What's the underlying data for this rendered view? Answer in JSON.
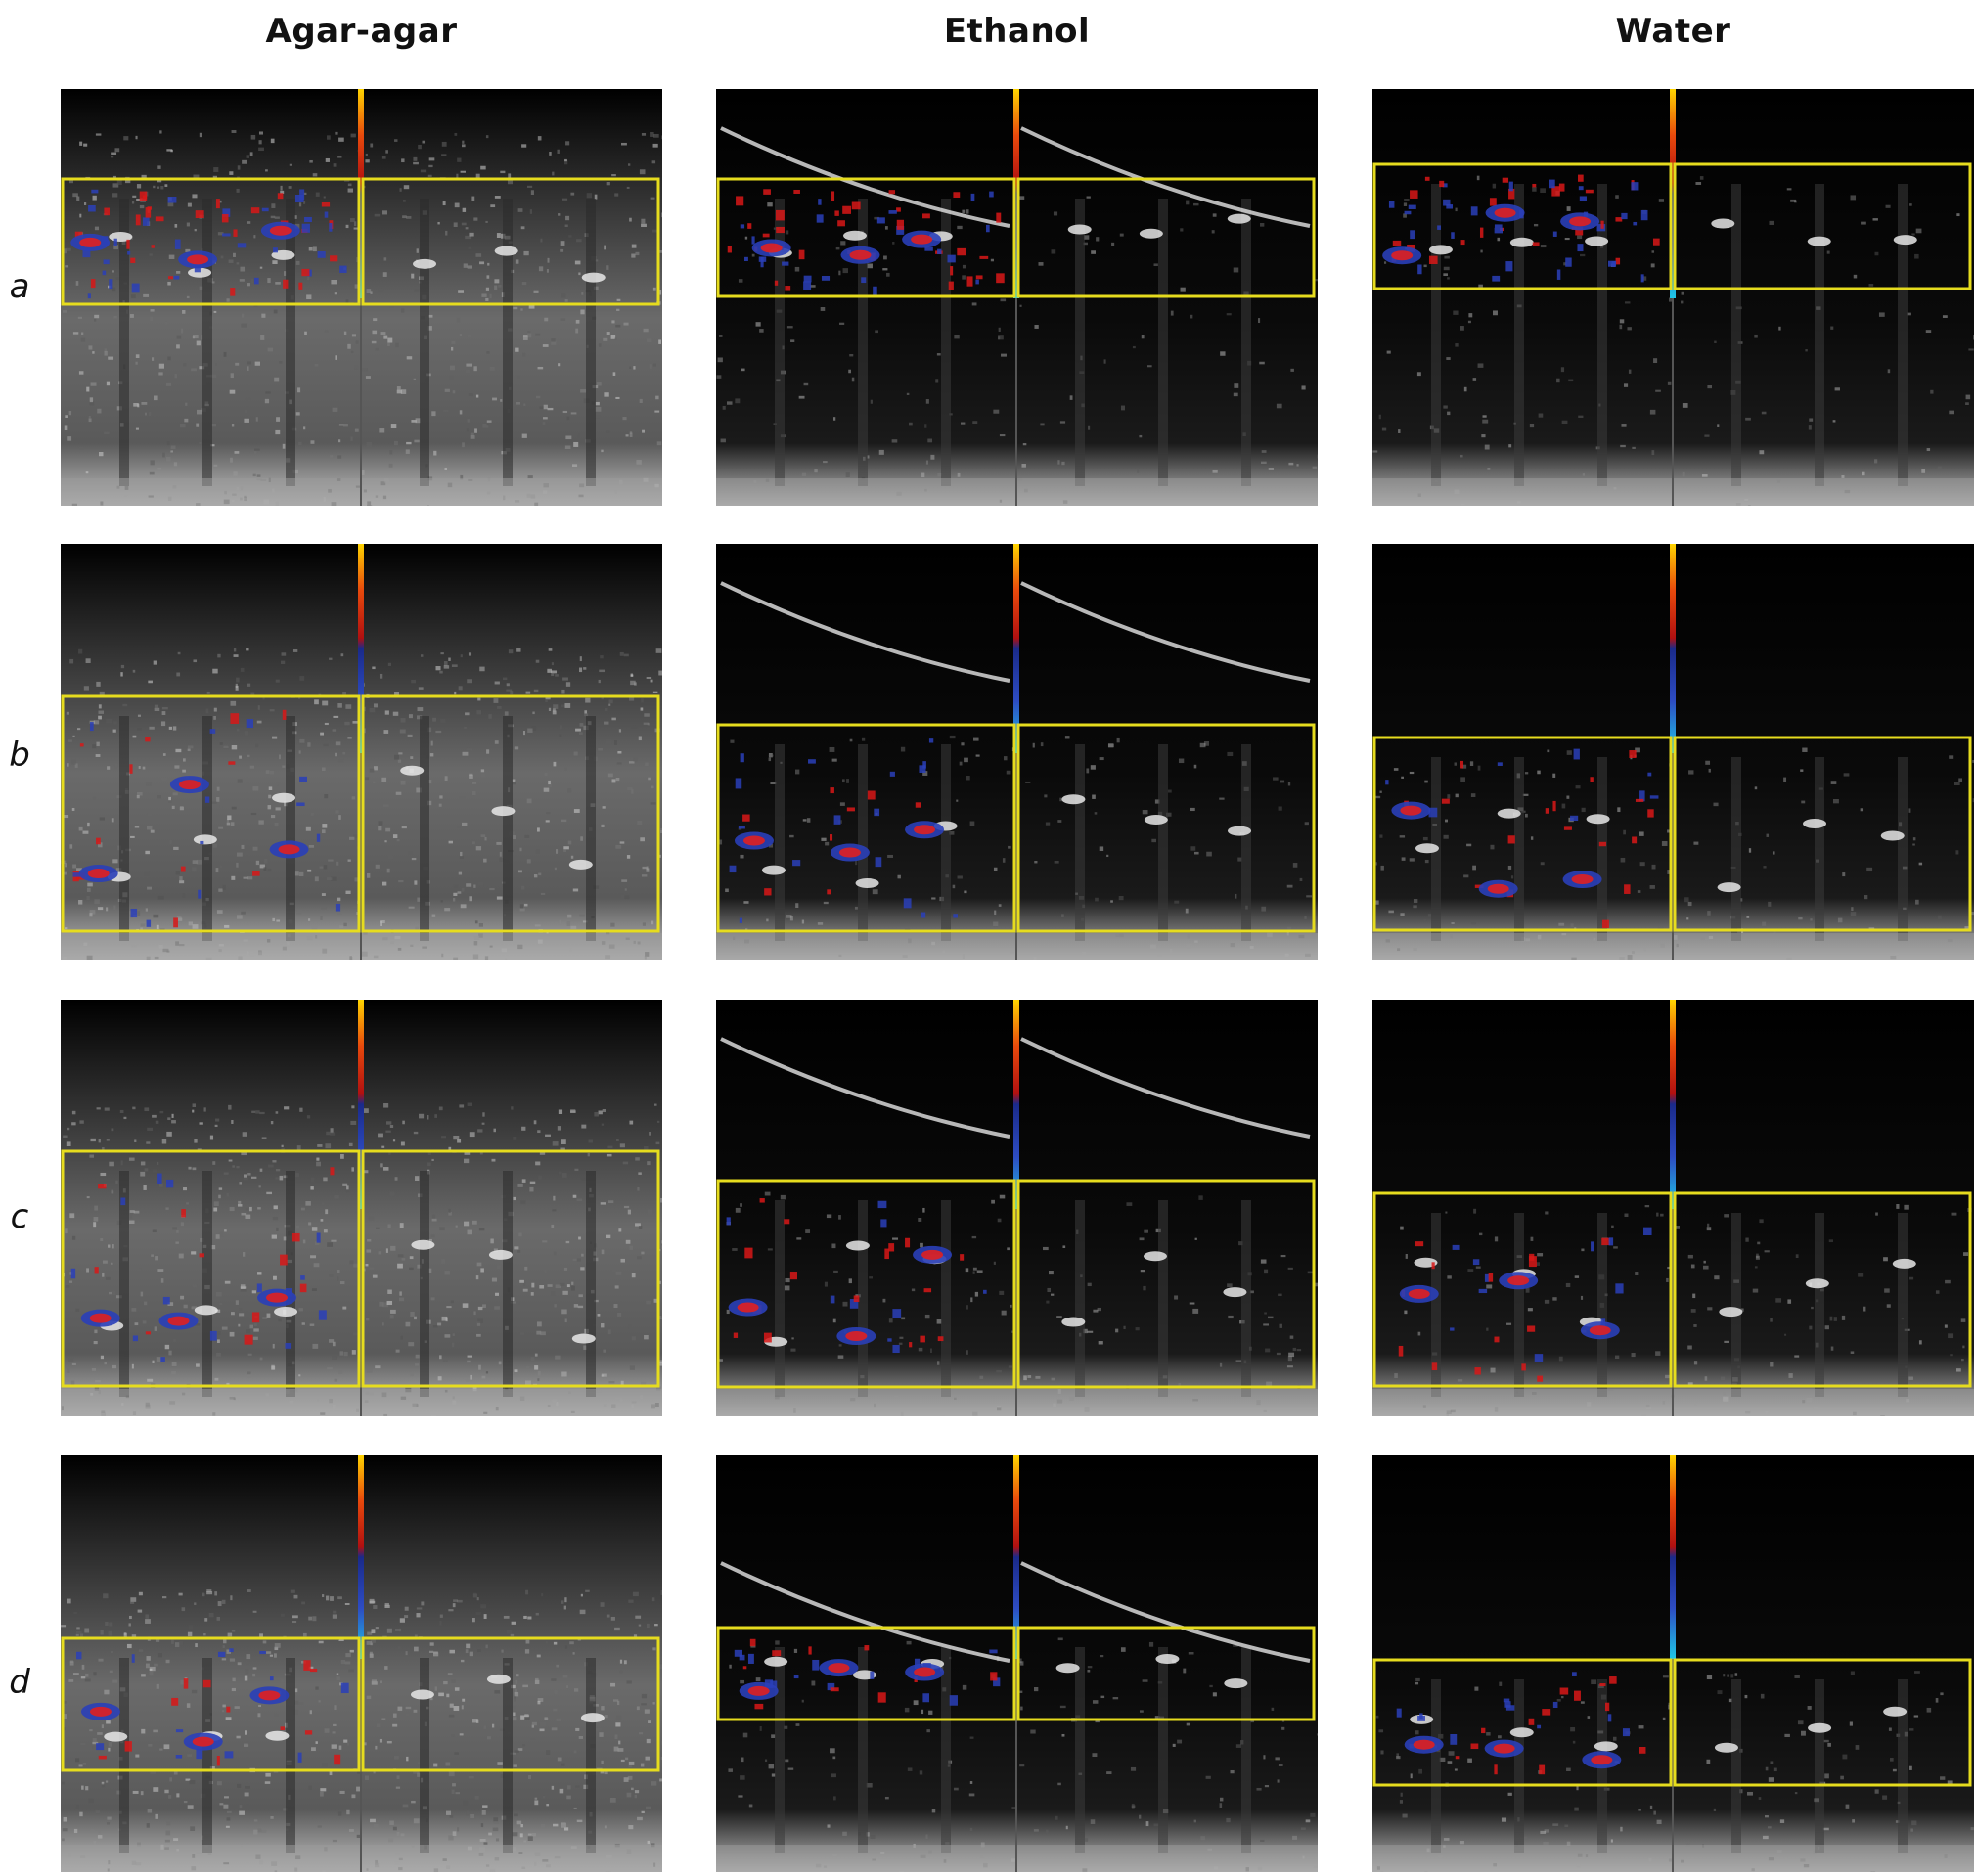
{
  "columns": [
    "Agar-agar",
    "Ethanol",
    "Water"
  ],
  "rows": [
    "a",
    "b",
    "c",
    "d"
  ]
}
